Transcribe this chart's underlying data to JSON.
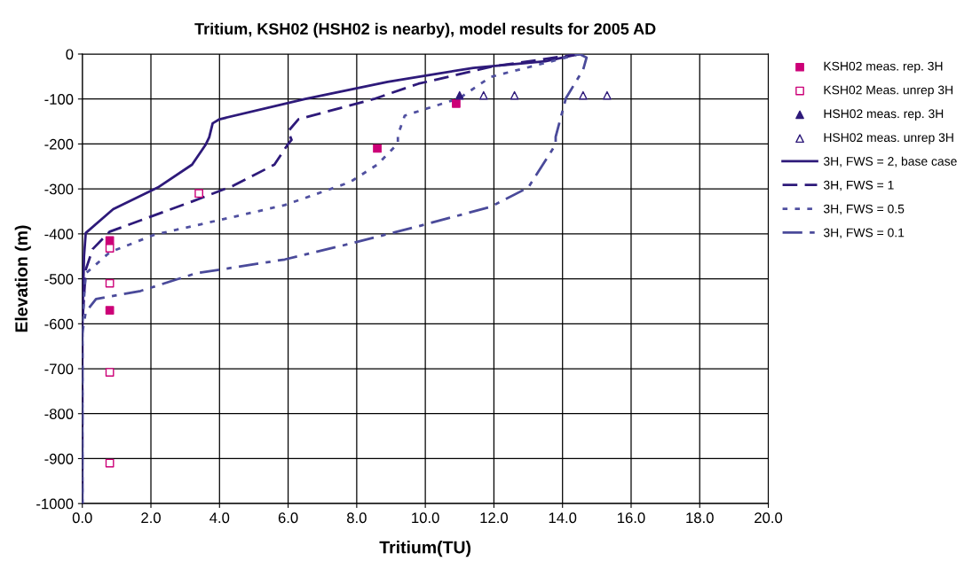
{
  "chart_data": {
    "type": "scatter",
    "title": "Tritium, KSH02 (HSH02 is nearby), model results for 2005 AD",
    "xlabel": "Tritium(TU)",
    "ylabel": "Elevation (m)",
    "xlim": [
      0,
      20
    ],
    "ylim": [
      -1000,
      0
    ],
    "xticks": [
      {
        "value": 0,
        "label": "0.0"
      },
      {
        "value": 2,
        "label": "2.0"
      },
      {
        "value": 4,
        "label": "4.0"
      },
      {
        "value": 6,
        "label": "6.0"
      },
      {
        "value": 8,
        "label": "8.0"
      },
      {
        "value": 10,
        "label": "10.0"
      },
      {
        "value": 12,
        "label": "12.0"
      },
      {
        "value": 14,
        "label": "14.0"
      },
      {
        "value": 16,
        "label": "16.0"
      },
      {
        "value": 18,
        "label": "18.0"
      },
      {
        "value": 20,
        "label": "20.0"
      }
    ],
    "yticks": [
      -1000,
      -900,
      -800,
      -700,
      -600,
      -500,
      -400,
      -300,
      -200,
      -100,
      0
    ],
    "grid": true,
    "legend": "right",
    "series": [
      {
        "name": "KSH02 meas. rep. 3H",
        "marker": "square",
        "color": "#cc0077",
        "x": [
          0.8,
          0.8,
          8.6,
          10.9
        ],
        "values": [
          -415,
          -570,
          -210,
          -110
        ]
      },
      {
        "name": "KSH02 Meas. unrep 3H",
        "marker": "square-open",
        "color": "#cc0077",
        "x": [
          3.4,
          0.8,
          0.8,
          0.8,
          0.8
        ],
        "values": [
          -310,
          -432,
          -510,
          -708,
          -910
        ]
      },
      {
        "name": "HSH02 meas. rep. 3H",
        "marker": "triangle",
        "color": "#2e1a7a",
        "x": [
          11.0
        ],
        "values": [
          -92
        ]
      },
      {
        "name": "HSH02 meas. unrep 3H",
        "marker": "triangle-open",
        "color": "#2e1a7a",
        "x": [
          11.7,
          12.6,
          14.6,
          15.3
        ],
        "values": [
          -92,
          -92,
          -92,
          -92
        ]
      },
      {
        "name": "3H, FWS = 2, base case",
        "type": "line",
        "line_style": "solid",
        "color": "#2e1a7a",
        "x": [
          14.5,
          13.5,
          11.4,
          10.4,
          8.9,
          6.5,
          4.0,
          3.8,
          3.7,
          3.6,
          3.2,
          2.2,
          0.9,
          0.1,
          0.05,
          0,
          0
        ],
        "values": [
          0,
          -16,
          -31,
          -43,
          -62,
          -100,
          -145,
          -154,
          -185,
          -201,
          -246,
          -297,
          -345,
          -398,
          -450,
          -600,
          -1000
        ]
      },
      {
        "name": "3H, FWS = 1",
        "type": "line",
        "line_style": "dashed",
        "color": "#2e1a7a",
        "x": [
          14.5,
          12.0,
          9.8,
          8.5,
          6.3,
          6.0,
          6.1,
          6.0,
          5.6,
          4.4,
          3.2,
          0.8,
          0.3,
          0.1,
          0,
          0
        ],
        "values": [
          0,
          -27,
          -66,
          -100,
          -145,
          -172,
          -191,
          -200,
          -246,
          -293,
          -328,
          -395,
          -434,
          -480,
          -600,
          -1000
        ]
      },
      {
        "name": "3H, FWS = 0.5",
        "type": "line",
        "line_style": "dotted",
        "color": "#5050a0",
        "x": [
          14.5,
          11.9,
          11.0,
          9.4,
          9.2,
          9.2,
          8.6,
          7.8,
          5.9,
          3.9,
          2.1,
          0.8,
          0.1,
          0,
          0
        ],
        "values": [
          0,
          -51,
          -98,
          -137,
          -180,
          -199,
          -246,
          -285,
          -336,
          -371,
          -402,
          -441,
          -488,
          -600,
          -1000
        ]
      },
      {
        "name": "3H, FWS = 0.1",
        "type": "line",
        "line_style": "dashdot",
        "color": "#4a4a9a",
        "x": [
          14.5,
          14.7,
          14.6,
          14.1,
          13.8,
          13.8,
          13.0,
          11.9,
          9.8,
          7.8,
          5.9,
          3.3,
          1.7,
          0.4,
          0.1,
          0,
          0
        ],
        "values": [
          0,
          -8,
          -35,
          -98,
          -184,
          -201,
          -297,
          -340,
          -383,
          -422,
          -457,
          -488,
          -527,
          -545,
          -574,
          -620,
          -1000
        ]
      }
    ]
  }
}
